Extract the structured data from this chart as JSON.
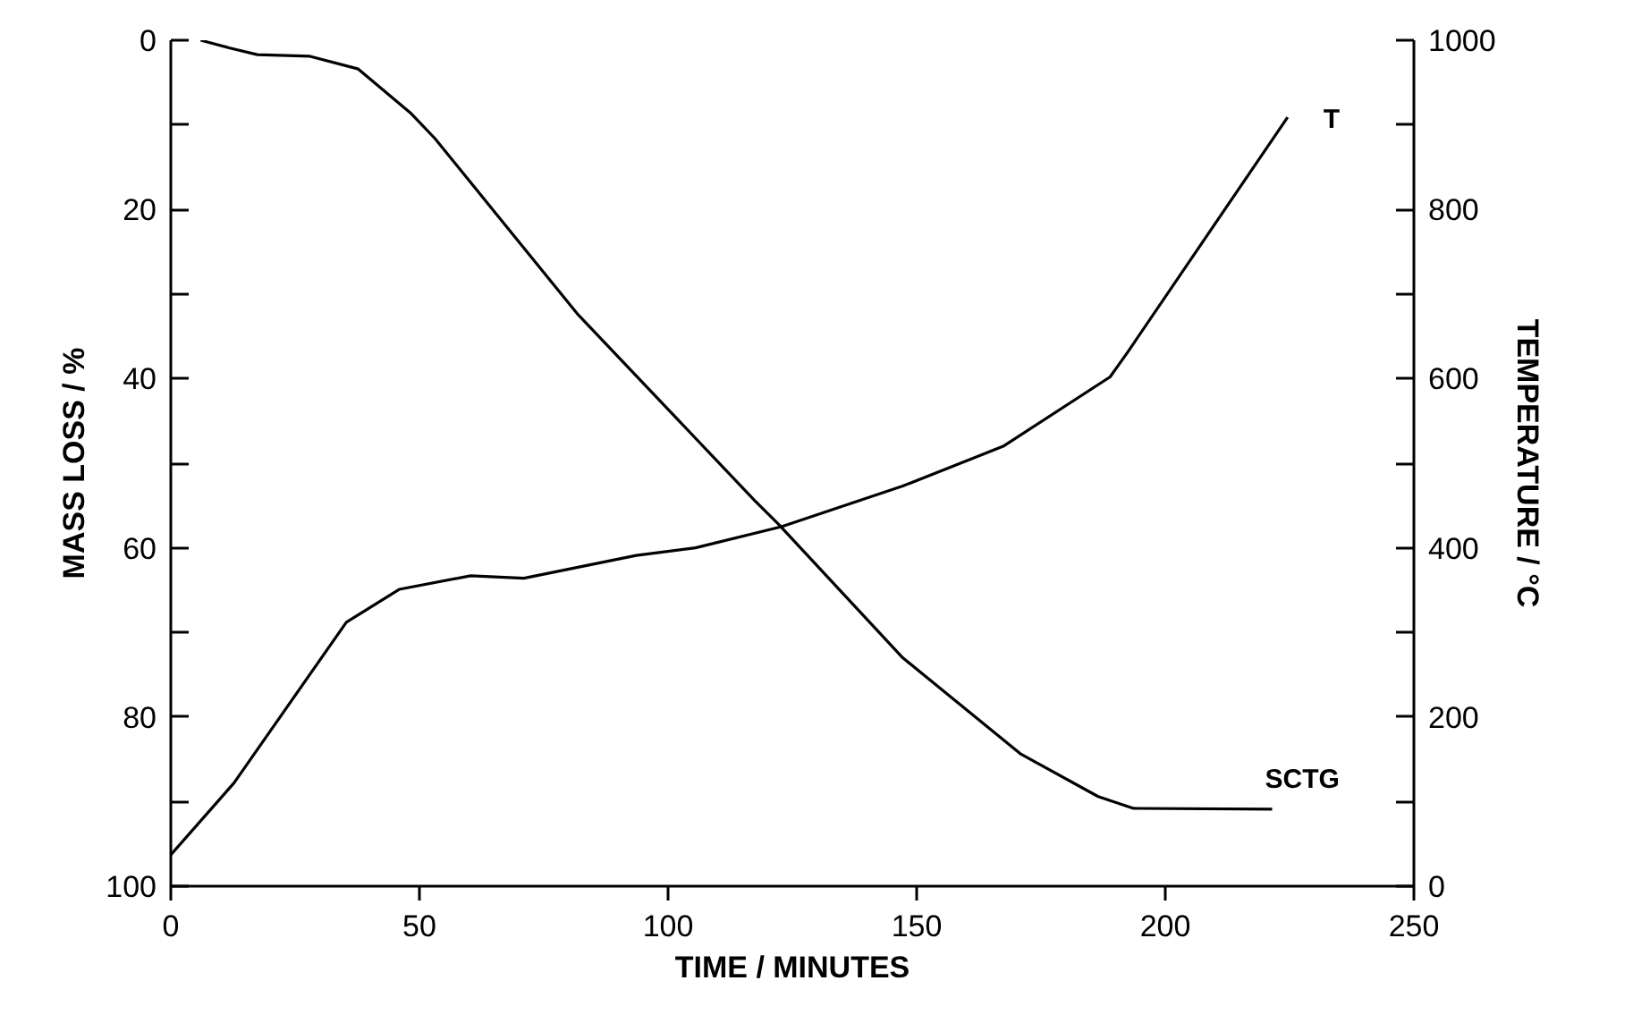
{
  "chart_data": {
    "type": "line",
    "xlabel": "TIME / MINUTES",
    "ylabel": "MASS LOSS / %",
    "y2label": "TEMPERATURE / °C",
    "xlim": [
      0,
      250
    ],
    "xticks": [
      0,
      50,
      100,
      150,
      200,
      250
    ],
    "ylim": [
      100,
      0
    ],
    "yticks": [
      0,
      {
        "value": 10,
        "label": null
      },
      20,
      {
        "value": 30,
        "label": null
      },
      40,
      {
        "value": 50,
        "label": null
      },
      60,
      {
        "value": 70,
        "label": null
      },
      80,
      {
        "value": 90,
        "label": null
      },
      100
    ],
    "y2lim": [
      0,
      1000
    ],
    "y2ticks": [
      0,
      {
        "value": 100,
        "label": null
      },
      200,
      {
        "value": 300,
        "label": null
      },
      400,
      {
        "value": 500,
        "label": null
      },
      600,
      {
        "value": 700,
        "label": null
      },
      800,
      {
        "value": 900,
        "label": null
      },
      1000
    ],
    "grid": false,
    "line_style": "solid",
    "series": [
      {
        "name": "SCTG",
        "color": "#000000",
        "x": [
          6,
          11.7,
          17.4,
          28,
          37.7,
          48.4,
          53.1,
          81.7,
          117.4,
          122.2,
          147.2,
          171,
          186.5,
          193.6,
          221.5
        ],
        "values": [
          0,
          0.9,
          1.7,
          1.9,
          3.4,
          8.7,
          11.6,
          32.3,
          54.4,
          57.2,
          73,
          84.4,
          89.4,
          90.8,
          90.9
        ]
      },
      {
        "name": "T",
        "color": "#000000",
        "axis": "y2",
        "x": [
          0,
          12.7,
          35.3,
          46,
          60.3,
          71,
          93.6,
          105.5,
          122.8,
          147.2,
          167.4,
          188.9,
          192.4,
          224.6
        ],
        "values": [
          37,
          122,
          312,
          351,
          367,
          364,
          391,
          400,
          425,
          473,
          520,
          602,
          631,
          909
        ]
      }
    ]
  }
}
